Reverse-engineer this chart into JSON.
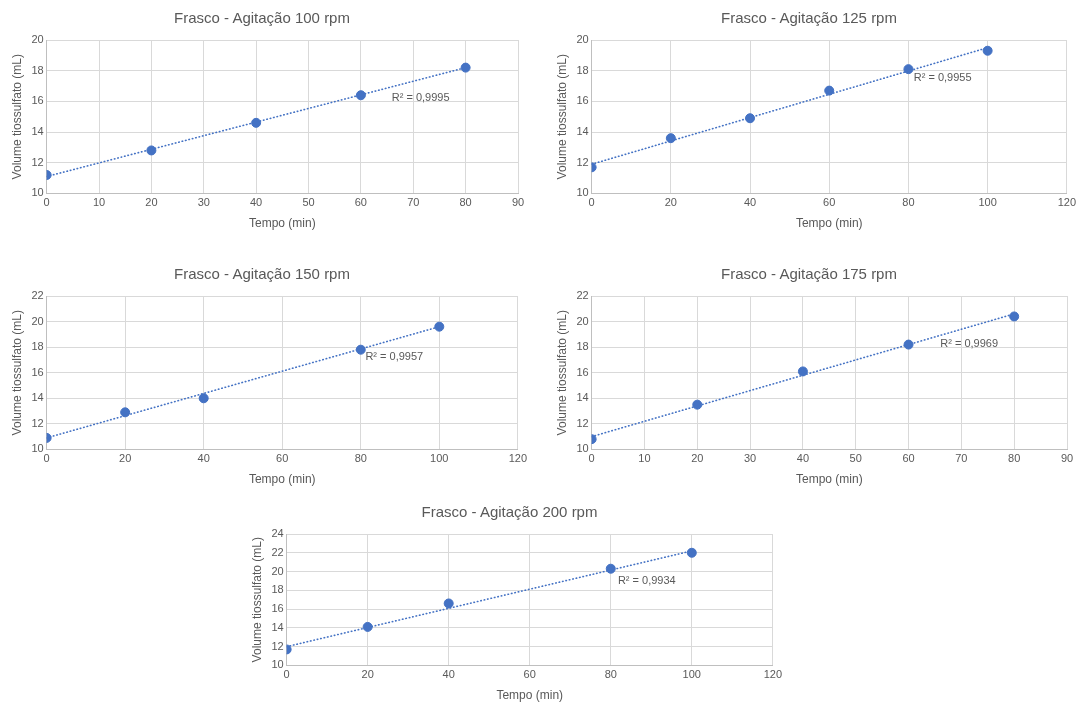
{
  "chart_data": [
    {
      "type": "scatter",
      "title": "Frasco - Agitação 100 rpm",
      "xlabel": "Tempo (min)",
      "ylabel": "Volume tiossulfato (mL)",
      "x": [
        0,
        20,
        40,
        60,
        80
      ],
      "xlim": [
        0,
        90
      ],
      "xticks": [
        0,
        10,
        20,
        30,
        40,
        50,
        60,
        70,
        80,
        90
      ],
      "ylim": [
        10,
        20
      ],
      "yticks": [
        10,
        12,
        14,
        16,
        18,
        20
      ],
      "grid": true,
      "legend": false,
      "series": [
        {
          "color": "#4472c4",
          "marker": "circle",
          "values": [
            11.2,
            12.8,
            14.6,
            16.4,
            18.2
          ]
        },
        {
          "type": "line",
          "x": [
            0,
            80
          ],
          "color": "#4472c4",
          "line_style": "dotted",
          "values": [
            11.1,
            18.2
          ]
        }
      ],
      "annotations": [
        "R² = 0,9995"
      ]
    },
    {
      "type": "scatter",
      "title": "Frasco - Agitação 125 rpm",
      "xlabel": "Tempo (min)",
      "ylabel": "Volume tiossulfato (mL)",
      "x": [
        0,
        20,
        40,
        60,
        80,
        100
      ],
      "xlim": [
        0,
        120
      ],
      "xticks": [
        0,
        20,
        40,
        60,
        80,
        100,
        120
      ],
      "ylim": [
        10,
        20
      ],
      "yticks": [
        10,
        12,
        14,
        16,
        18,
        20
      ],
      "grid": true,
      "legend": false,
      "series": [
        {
          "color": "#4472c4",
          "marker": "circle",
          "values": [
            11.7,
            13.6,
            14.9,
            16.7,
            18.1,
            19.3
          ]
        },
        {
          "type": "line",
          "x": [
            0,
            100
          ],
          "color": "#4472c4",
          "line_style": "dotted",
          "values": [
            11.9,
            19.5
          ]
        }
      ],
      "annotations": [
        "R² = 0,9955"
      ]
    },
    {
      "type": "scatter",
      "title": "Frasco - Agitação 150 rpm",
      "xlabel": "Tempo (min)",
      "ylabel": "Volume tiossulfato (mL)",
      "x": [
        0,
        20,
        40,
        80,
        100
      ],
      "xlim": [
        0,
        120
      ],
      "xticks": [
        0,
        20,
        40,
        60,
        80,
        100,
        120
      ],
      "ylim": [
        10,
        22
      ],
      "yticks": [
        10,
        12,
        14,
        16,
        18,
        20,
        22
      ],
      "grid": true,
      "legend": false,
      "series": [
        {
          "color": "#4472c4",
          "marker": "circle",
          "values": [
            10.9,
            12.9,
            14.0,
            17.8,
            19.6
          ]
        },
        {
          "type": "line",
          "x": [
            0,
            100
          ],
          "color": "#4472c4",
          "line_style": "dotted",
          "values": [
            10.9,
            19.6
          ]
        }
      ],
      "annotations": [
        "R² = 0,9957"
      ]
    },
    {
      "type": "scatter",
      "title": "Frasco - Agitação 175 rpm",
      "xlabel": "Tempo (min)",
      "ylabel": "Volume tiossulfato (mL)",
      "x": [
        0,
        20,
        40,
        60,
        80
      ],
      "xlim": [
        0,
        90
      ],
      "xticks": [
        0,
        10,
        20,
        30,
        40,
        50,
        60,
        70,
        80,
        90
      ],
      "ylim": [
        10,
        22
      ],
      "yticks": [
        10,
        12,
        14,
        16,
        18,
        20,
        22
      ],
      "grid": true,
      "legend": false,
      "series": [
        {
          "color": "#4472c4",
          "marker": "circle",
          "values": [
            10.8,
            13.5,
            16.1,
            18.2,
            20.4
          ]
        },
        {
          "type": "line",
          "x": [
            0,
            80
          ],
          "color": "#4472c4",
          "line_style": "dotted",
          "values": [
            11.0,
            20.6
          ]
        }
      ],
      "annotations": [
        "R² = 0,9969"
      ]
    },
    {
      "type": "scatter",
      "title": "Frasco - Agitação 200 rpm",
      "xlabel": "Tempo (min)",
      "ylabel": "Volume tiossulfato (mL)",
      "x": [
        0,
        20,
        40,
        80,
        100
      ],
      "xlim": [
        0,
        120
      ],
      "xticks": [
        0,
        20,
        40,
        60,
        80,
        100,
        120
      ],
      "ylim": [
        10,
        24
      ],
      "yticks": [
        10,
        12,
        14,
        16,
        18,
        20,
        22,
        24
      ],
      "grid": true,
      "legend": false,
      "series": [
        {
          "color": "#4472c4",
          "marker": "circle",
          "values": [
            11.7,
            14.1,
            16.6,
            20.3,
            22.0
          ]
        },
        {
          "type": "line",
          "x": [
            0,
            100
          ],
          "color": "#4472c4",
          "line_style": "dotted",
          "values": [
            12.0,
            22.2
          ]
        }
      ],
      "annotations": [
        "R² = 0,9934"
      ]
    }
  ]
}
